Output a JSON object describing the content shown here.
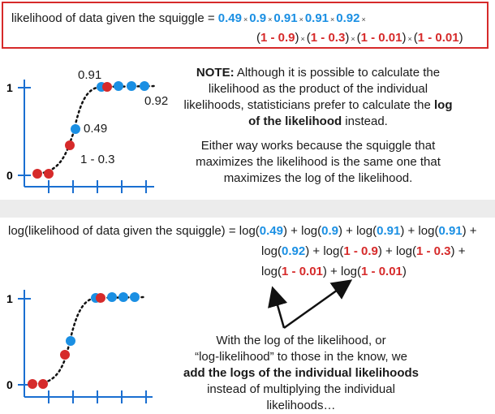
{
  "top_formula": {
    "prefix": "likelihood of data given the squiggle = ",
    "blue_terms": [
      "0.49",
      "0.9",
      "0.91",
      "0.91",
      "0.92"
    ],
    "red_terms": [
      "1 - 0.9",
      "1 - 0.3",
      "1 - 0.01",
      "1 - 0.01"
    ],
    "times_symbol": "×"
  },
  "plot_top": {
    "y_tick_top": "1",
    "y_tick_bottom": "0",
    "labels": {
      "p091": "0.91",
      "p092": "0.92",
      "p049": "0.49",
      "p1m03": "1 - 0.3"
    }
  },
  "note": {
    "bold_lead": "NOTE:",
    "para1_a": " Although it is possible to calculate the likelihood as the product of the individual likelihoods, statisticians prefer to calculate the ",
    "para1_bold": "log of the likelihood",
    "para1_b": " instead.",
    "para2": "Either way works because the squiggle that maximizes the likelihood is the same one that maximizes the log of the likelihood."
  },
  "log_formula": {
    "prefix": "log(likelihood of data given the squiggle) = ",
    "log_open": "log(",
    "log_close": ")",
    "plus": " + ",
    "blue_terms": [
      "0.49",
      "0.9",
      "0.91",
      "0.91",
      "0.92"
    ],
    "red_terms": [
      "1 - 0.9",
      "1 - 0.3",
      "1 - 0.01",
      "1 - 0.01"
    ]
  },
  "plot_bottom": {
    "y_tick_top": "1",
    "y_tick_bottom": "0"
  },
  "bottom_note": {
    "line1": "With the log of the likelihood, or",
    "line2": "“log-likelihood” to those in the know, we",
    "bold": "add the logs of the individual likelihoods",
    "line4": "instead of multiplying the individual",
    "line5": "likelihoods…"
  },
  "colors": {
    "blue": "#1a8fe3",
    "red": "#d62a2a",
    "axis": "#1a6fd1"
  }
}
